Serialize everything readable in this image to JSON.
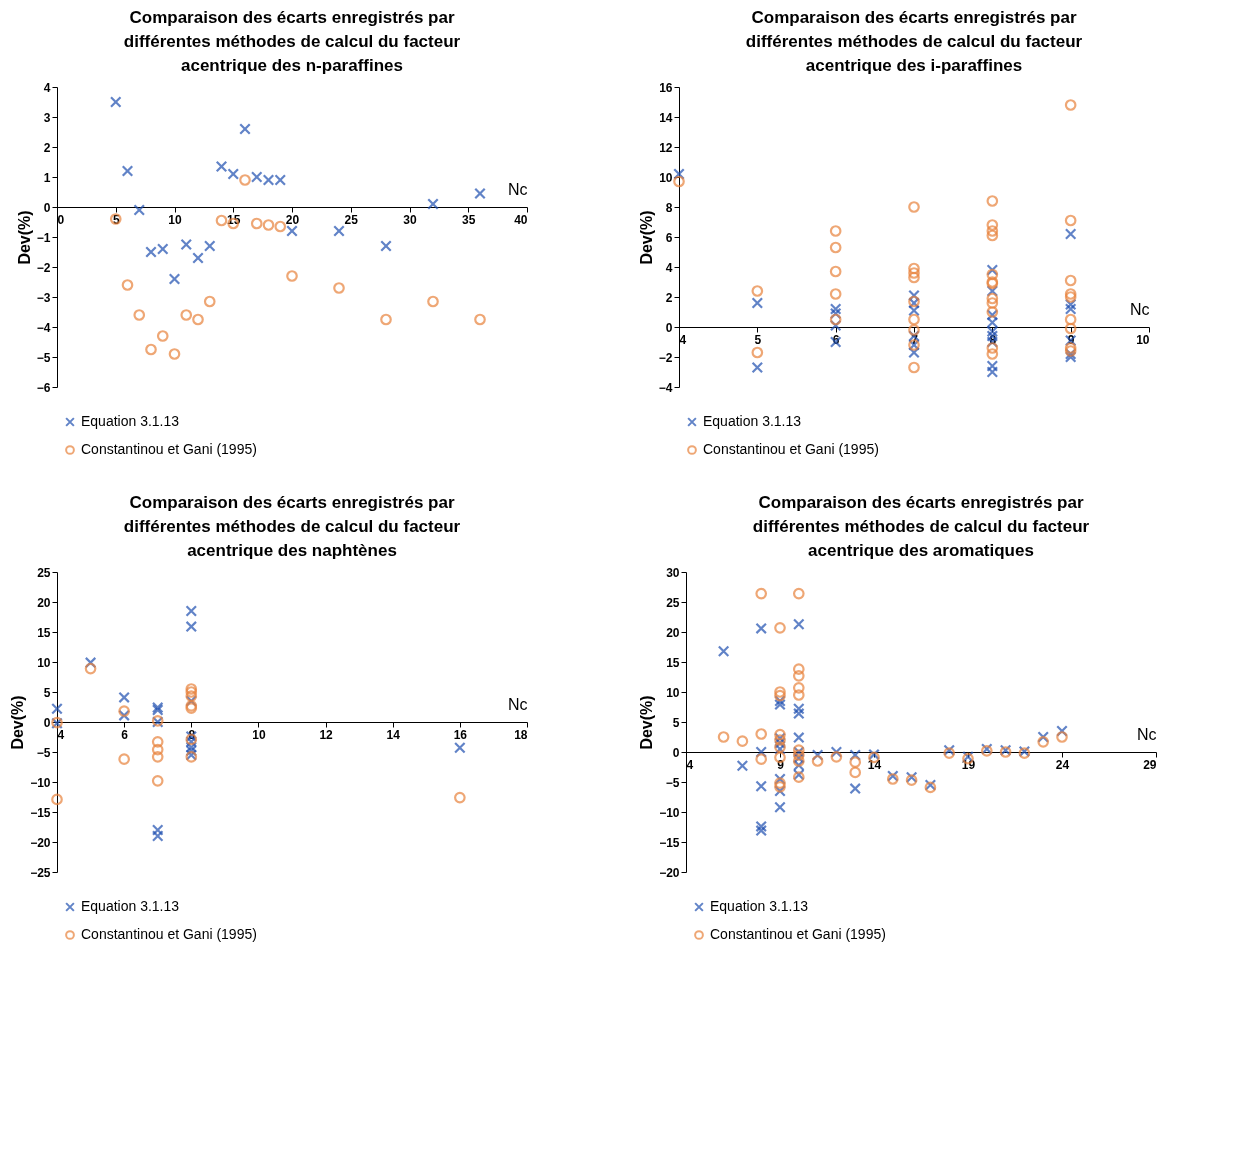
{
  "chart_data": [
    {
      "type": "scatter",
      "title": "Comparaison des écarts enregistrés par différentes méthodes de calcul du facteur acentrique des n-paraffines",
      "xlabel": "Nc",
      "ylabel": "Dev(%)",
      "xlim": [
        0,
        40
      ],
      "xticks": [
        0,
        5,
        10,
        15,
        20,
        25,
        30,
        35,
        40
      ],
      "ylim": [
        -6,
        4
      ],
      "yticks": [
        -6,
        -5,
        -4,
        -3,
        -2,
        -1,
        0,
        1,
        2,
        3,
        4
      ],
      "legend": "bottom",
      "series": [
        {
          "name": "Equation 3.1.13",
          "color": "#1f4fb0",
          "marker": "cross",
          "x": [
            5,
            6,
            7,
            8,
            9,
            10,
            11,
            12,
            13,
            14,
            15,
            16,
            17,
            18,
            19,
            20,
            24,
            28,
            32,
            36
          ],
          "values": [
            3.5,
            1.2,
            -0.1,
            -1.5,
            -1.4,
            -2.4,
            -1.25,
            -1.7,
            -1.3,
            1.35,
            1.1,
            2.6,
            1.0,
            0.9,
            0.9,
            -0.8,
            -0.8,
            -1.3,
            0.1,
            0.45
          ]
        },
        {
          "name": "Constantinou et Gani (1995)",
          "color": "#e8823c",
          "marker": "circle",
          "x": [
            5,
            6,
            7,
            8,
            9,
            10,
            11,
            12,
            13,
            14,
            15,
            16,
            17,
            18,
            19,
            20,
            24,
            28,
            32,
            36
          ],
          "values": [
            -0.4,
            -2.6,
            -3.6,
            -4.75,
            -4.3,
            -4.9,
            -3.6,
            -3.75,
            -3.15,
            -0.45,
            -0.55,
            0.9,
            -0.55,
            -0.6,
            -0.65,
            -2.3,
            -2.7,
            -3.75,
            -3.15,
            -3.75
          ]
        }
      ]
    },
    {
      "type": "scatter",
      "title": "Comparaison des écarts enregistrés par différentes méthodes de calcul du facteur acentrique des i-paraffines",
      "xlabel": "Nc",
      "ylabel": "Dev(%)",
      "xlim": [
        4,
        10
      ],
      "xticks": [
        4,
        5,
        6,
        7,
        8,
        9,
        10
      ],
      "ylim": [
        -4,
        16
      ],
      "yticks": [
        -4,
        -2,
        0,
        2,
        4,
        6,
        8,
        10,
        12,
        14,
        16
      ],
      "legend": "bottom",
      "series": [
        {
          "name": "Equation 3.1.13",
          "color": "#1f4fb0",
          "marker": "cross",
          "x": [
            4,
            5,
            5,
            6,
            6,
            6,
            6,
            7,
            7,
            7,
            7,
            7,
            7,
            8,
            8,
            8,
            8,
            8,
            8,
            8,
            8,
            8,
            9,
            9,
            9,
            9,
            9,
            9
          ],
          "values": [
            10.2,
            1.6,
            -2.7,
            1.2,
            0.9,
            0.1,
            -1.0,
            2.1,
            1.6,
            1.1,
            -0.6,
            -1.2,
            -1.7,
            3.8,
            2.4,
            0.8,
            0.3,
            -0.3,
            -0.6,
            -1.0,
            -2.6,
            -3.0,
            6.2,
            1.5,
            1.2,
            -0.9,
            -1.8,
            -2.0
          ]
        },
        {
          "name": "Constantinou et Gani (1995)",
          "color": "#e8823c",
          "marker": "circle",
          "x": [
            4,
            5,
            5,
            6,
            6,
            6,
            6,
            6,
            7,
            7,
            7,
            7,
            7,
            7,
            7,
            7,
            7,
            8,
            8,
            8,
            8,
            8,
            8,
            8,
            8,
            8,
            8,
            8,
            8,
            9,
            9,
            9,
            9,
            9,
            9,
            9,
            9,
            9
          ],
          "values": [
            9.7,
            2.4,
            -1.7,
            6.4,
            5.3,
            3.7,
            2.2,
            0.5,
            8.0,
            3.9,
            3.6,
            3.3,
            1.7,
            0.5,
            -0.2,
            -1.2,
            -2.7,
            8.4,
            6.8,
            6.4,
            6.1,
            3.5,
            3.0,
            2.9,
            1.9,
            1.6,
            1.0,
            -1.4,
            -1.8,
            14.8,
            7.1,
            3.1,
            2.2,
            2.0,
            0.5,
            -0.1,
            -1.4,
            -1.6
          ]
        }
      ]
    },
    {
      "type": "scatter",
      "title": "Comparaison des écarts enregistrés par différentes méthodes de calcul du facteur acentrique des naphtènes",
      "xlabel": "Nc",
      "ylabel": "Dev(%)",
      "xlim": [
        4,
        18
      ],
      "xticks": [
        4,
        6,
        8,
        10,
        12,
        14,
        16,
        18
      ],
      "ylim": [
        -25,
        25
      ],
      "yticks": [
        -25,
        -20,
        -15,
        -10,
        -5,
        0,
        5,
        10,
        15,
        20,
        25
      ],
      "legend": "bottom",
      "series": [
        {
          "name": "Equation 3.1.13",
          "color": "#1f4fb0",
          "marker": "cross",
          "x": [
            4,
            4,
            5,
            6,
            6,
            7,
            7,
            7,
            7,
            7,
            8,
            8,
            8,
            8,
            8,
            8,
            8,
            8,
            16
          ],
          "values": [
            2.2,
            -0.2,
            9.9,
            4.1,
            1.1,
            2.4,
            2.0,
            0,
            -18,
            -19,
            18.5,
            15.9,
            3.5,
            -2.4,
            -3.3,
            -4.2,
            -4.8,
            -5.5,
            -4.3
          ]
        },
        {
          "name": "Constantinou et Gani (1995)",
          "color": "#e8823c",
          "marker": "circle",
          "x": [
            4,
            4,
            5,
            6,
            6,
            7,
            7,
            7,
            7,
            7,
            8,
            8,
            8,
            8,
            8,
            8,
            8,
            16
          ],
          "values": [
            -0.1,
            -12.9,
            8.9,
            1.8,
            -6.2,
            0.2,
            -3.3,
            -4.6,
            -5.8,
            -9.8,
            5.5,
            5.0,
            4.3,
            2.7,
            2.3,
            -2.9,
            -5.8,
            -12.6
          ]
        }
      ]
    },
    {
      "type": "scatter",
      "title": "Comparaison des écarts enregistrés par différentes méthodes de calcul du facteur acentrique des aromatiques",
      "xlabel": "Nc",
      "ylabel": "Dev(%)",
      "xlim": [
        4,
        29
      ],
      "xticks": [
        4,
        9,
        14,
        19,
        24,
        29
      ],
      "ylim": [
        -20,
        30
      ],
      "yticks": [
        -20,
        -15,
        -10,
        -5,
        0,
        5,
        10,
        15,
        20,
        25,
        30
      ],
      "legend": "bottom",
      "series": [
        {
          "name": "Equation 3.1.13",
          "color": "#1f4fb0",
          "marker": "cross",
          "x": [
            6,
            7,
            8,
            8,
            8,
            8,
            8,
            9,
            9,
            9,
            9,
            9,
            9,
            9,
            9,
            10,
            10,
            10,
            10,
            10,
            10,
            10,
            10,
            11,
            12,
            13,
            13,
            14,
            15,
            16,
            17,
            18,
            19,
            20,
            21,
            22,
            23,
            24
          ],
          "values": [
            16.8,
            -2.3,
            20.6,
            0,
            -5.7,
            -12.4,
            -13.1,
            8.5,
            7.9,
            2.3,
            1.5,
            0.5,
            -4.5,
            -6.5,
            -9.2,
            21.3,
            7.2,
            6.4,
            2.4,
            0,
            -1.0,
            -2.2,
            -3.8,
            -0.5,
            0,
            -0.5,
            -6.1,
            -0.4,
            -4.0,
            -4.2,
            -5.5,
            0.3,
            -0.8,
            0.5,
            0.3,
            0.1,
            2.5,
            3.5
          ]
        },
        {
          "name": "Constantinou et Gani (1995)",
          "color": "#e8823c",
          "marker": "circle",
          "x": [
            6,
            7,
            8,
            8,
            8,
            9,
            9,
            9,
            9,
            9,
            9,
            9,
            9,
            9,
            10,
            10,
            10,
            10,
            10,
            10,
            10,
            10,
            10,
            11,
            12,
            13,
            13,
            14,
            15,
            16,
            17,
            18,
            19,
            20,
            21,
            22,
            23,
            24
          ],
          "values": [
            2.5,
            1.8,
            26.4,
            3.0,
            -1.2,
            20.7,
            10.0,
            9.4,
            2.9,
            2.0,
            0.8,
            -0.9,
            -5.2,
            -5.8,
            26.4,
            13.8,
            12.7,
            10.7,
            9.5,
            0.3,
            -0.5,
            -1.5,
            -4.2,
            -1.5,
            -0.8,
            -1.7,
            -3.4,
            -0.9,
            -4.5,
            -4.7,
            -5.9,
            -0.2,
            -1.1,
            0.2,
            0,
            -0.2,
            1.7,
            2.5
          ]
        }
      ]
    }
  ]
}
